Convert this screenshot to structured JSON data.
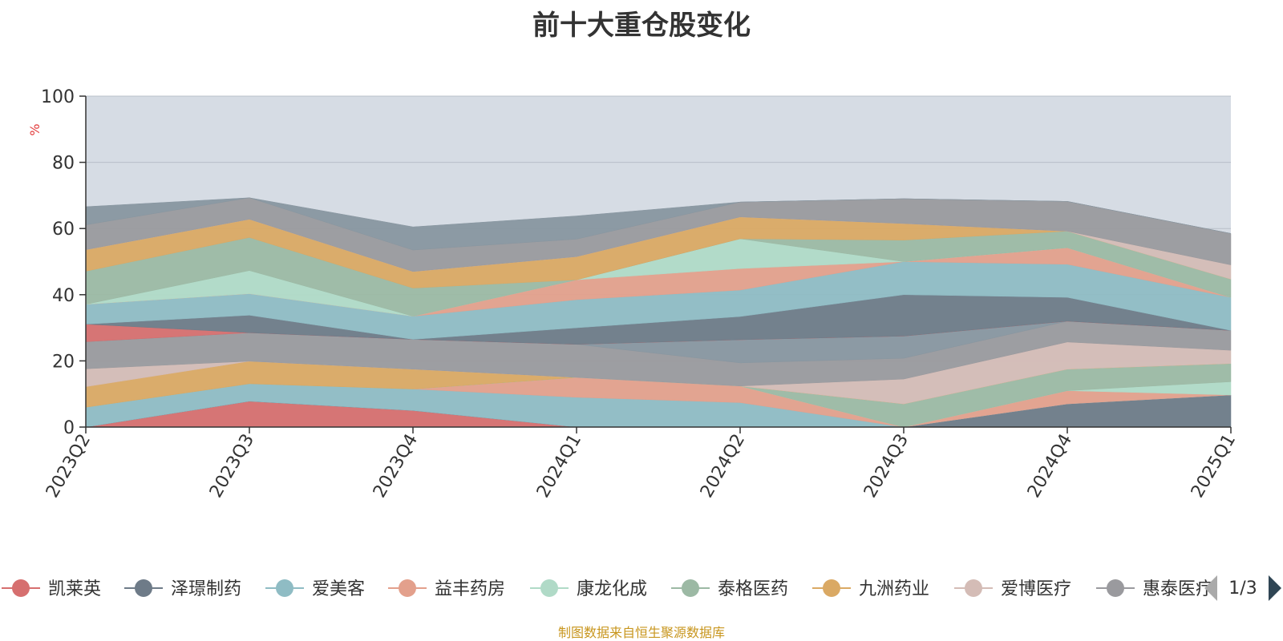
{
  "title": "前十大重仓股变化",
  "source_note": "制图数据来自恒生聚源数据库",
  "legend_page": "1/3",
  "chart_data": {
    "type": "area",
    "stacked": true,
    "title": "前十大重仓股变化",
    "ylabel": "%",
    "ylim": [
      0,
      100
    ],
    "yticks": [
      0,
      20,
      40,
      60,
      80,
      100
    ],
    "grid": true,
    "legend_position": "bottom",
    "categories": [
      "2023Q2",
      "2023Q3",
      "2023Q4",
      "2024Q1",
      "2024Q2",
      "2024Q3",
      "2024Q4",
      "2025Q1"
    ],
    "series": [
      {
        "name": "凯莱英",
        "color": "#d66f6f",
        "values": [
          0,
          7.8,
          5,
          0,
          0,
          0,
          0,
          0
        ]
      },
      {
        "name": "泽璟制药",
        "color": "#6e7b88",
        "values": [
          0,
          0,
          0,
          0,
          0,
          0,
          7,
          9.7
        ]
      },
      {
        "name": "爱美客",
        "color": "#8fbcc4",
        "values": [
          6,
          5.3,
          6.5,
          9,
          7.4,
          0,
          0,
          0
        ]
      },
      {
        "name": "益丰药房",
        "color": "#e3a08c",
        "values": [
          0,
          0,
          0,
          6,
          5,
          0,
          4,
          0
        ]
      },
      {
        "name": "康龙化成",
        "color": "#b0dac7",
        "values": [
          0,
          0,
          0,
          0,
          0,
          0,
          0,
          4
        ]
      },
      {
        "name": "泰格医药",
        "color": "#9cb9a4",
        "values": [
          0,
          0,
          0,
          0,
          0,
          7,
          6.5,
          5.5
        ]
      },
      {
        "name": "九洲药业",
        "color": "#daa964",
        "values": [
          6.2,
          6.8,
          6,
          0,
          0,
          0,
          0,
          0
        ]
      },
      {
        "name": "爱博医疗",
        "color": "#d4bcb6",
        "values": [
          5.4,
          0,
          0,
          0,
          0,
          7.5,
          8.2,
          4
        ]
      },
      {
        "name": "惠泰医疗",
        "color": "#9a9a9e",
        "values": [
          8.2,
          8.6,
          9,
          10,
          7,
          6.3,
          6.3,
          6
        ]
      }
    ],
    "extra_layers": [
      {
        "color": "#8896a0",
        "values": [
          0,
          0,
          0,
          0,
          7,
          6.7,
          0,
          0
        ]
      },
      {
        "color": "#d66f6f",
        "values": [
          5.3,
          0,
          0,
          0,
          0,
          0,
          0,
          0
        ]
      },
      {
        "color": "#6e7b88",
        "values": [
          0,
          5.3,
          0,
          5,
          7,
          12.5,
          7.2,
          0
        ]
      },
      {
        "color": "#8fbcc4",
        "values": [
          6,
          6.5,
          7,
          8.5,
          8,
          10,
          10,
          10
        ]
      },
      {
        "color": "#e3a08c",
        "values": [
          0,
          0,
          0,
          6,
          6.5,
          0,
          5,
          0
        ]
      },
      {
        "color": "#b0dac7",
        "values": [
          0,
          7,
          0,
          0,
          9,
          0,
          0,
          0
        ]
      },
      {
        "color": "#9cb9a4",
        "values": [
          10,
          10,
          8.5,
          0,
          0,
          6.5,
          5,
          5.5
        ]
      },
      {
        "color": "#daa964",
        "values": [
          6.5,
          5.5,
          5,
          7,
          6.6,
          5,
          0,
          0
        ]
      },
      {
        "color": "#d4bcb6",
        "values": [
          0,
          0,
          0,
          0,
          0,
          0,
          0,
          4.3
        ]
      },
      {
        "color": "#9a9a9e",
        "values": [
          7.5,
          6.5,
          6.5,
          5.3,
          4.5,
          7.5,
          9,
          9.5
        ]
      },
      {
        "color": "#8896a0",
        "values": [
          5.5,
          0,
          7,
          7,
          0,
          0,
          0,
          0
        ]
      }
    ]
  }
}
